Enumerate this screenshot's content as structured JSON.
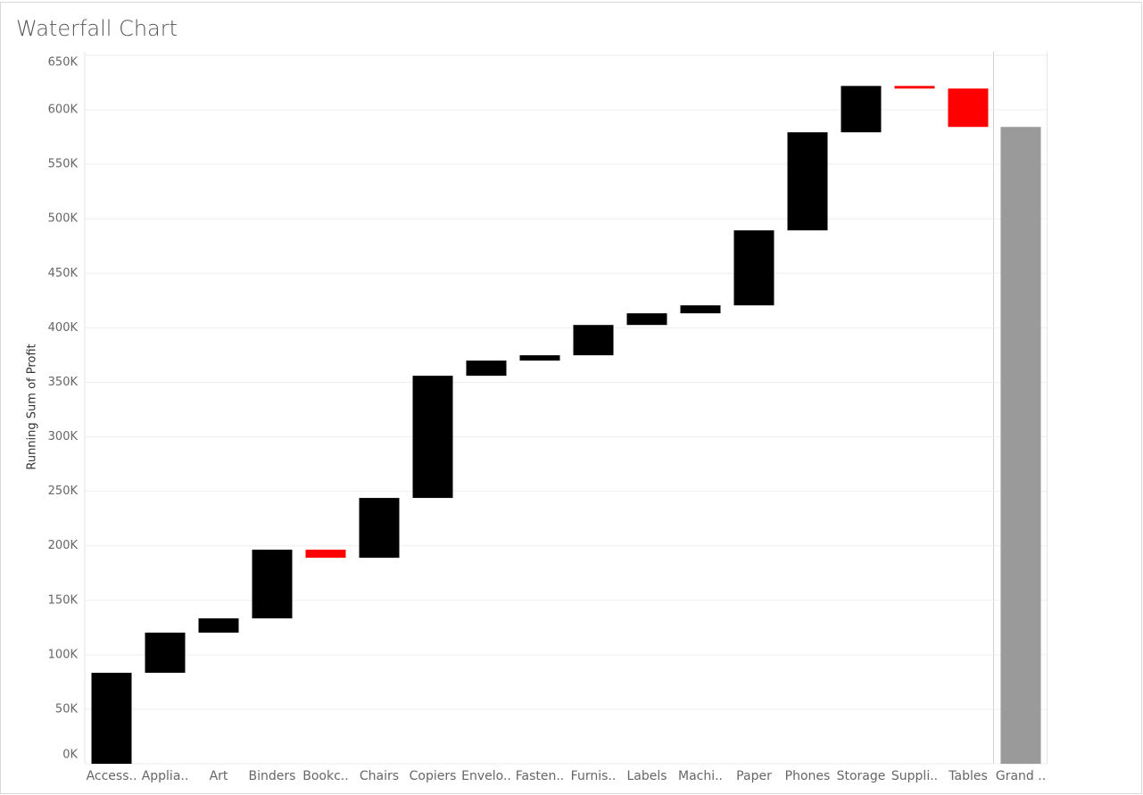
{
  "chart_data": {
    "type": "waterfall",
    "title": "Waterfall Chart",
    "y_label": "Running Sum of Profit",
    "categories": [
      "Access..",
      "Applia..",
      "Art",
      "Binders",
      "Bookc..",
      "Chairs",
      "Copiers",
      "Envelo..",
      "Fasten..",
      "Furnis..",
      "Labels",
      "Machi..",
      "Paper",
      "Phones",
      "Storage",
      "Suppli..",
      "Tables"
    ],
    "values": [
      83500,
      36800,
      13100,
      63000,
      -7400,
      54900,
      112100,
      13900,
      4900,
      27800,
      10700,
      7300,
      68800,
      90000,
      42500,
      -2400,
      -35200
    ],
    "total": {
      "label": "Grand ..",
      "value": 584300
    },
    "colors": {
      "increase": "#000000",
      "decrease": "#ff0000",
      "total": "#9a9a9a"
    },
    "ylim": [
      0,
      650000
    ],
    "yticks": [
      {
        "value": 0,
        "label": "0K"
      },
      {
        "value": 50000,
        "label": "50K"
      },
      {
        "value": 100000,
        "label": "100K"
      },
      {
        "value": 150000,
        "label": "150K"
      },
      {
        "value": 200000,
        "label": "200K"
      },
      {
        "value": 250000,
        "label": "250K"
      },
      {
        "value": 300000,
        "label": "300K"
      },
      {
        "value": 350000,
        "label": "350K"
      },
      {
        "value": 400000,
        "label": "400K"
      },
      {
        "value": 450000,
        "label": "450K"
      },
      {
        "value": 500000,
        "label": "500K"
      },
      {
        "value": 550000,
        "label": "550K"
      },
      {
        "value": 600000,
        "label": "600K"
      },
      {
        "value": 650000,
        "label": "650K"
      }
    ],
    "grid": true
  }
}
